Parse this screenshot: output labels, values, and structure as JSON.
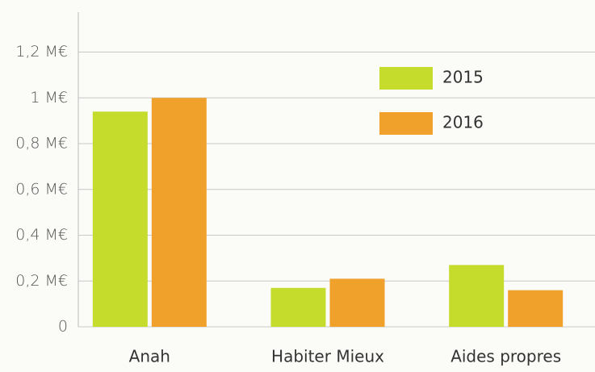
{
  "chart_data": {
    "type": "bar",
    "categories": [
      "Anah",
      "Habiter Mieux",
      "Aides propres"
    ],
    "series": [
      {
        "name": "2015",
        "color": "#c6dc2c",
        "values": [
          0.94,
          0.17,
          0.27
        ]
      },
      {
        "name": "2016",
        "color": "#f0a12c",
        "values": [
          1.0,
          0.21,
          0.16
        ]
      }
    ],
    "ylim": [
      0,
      1.35
    ],
    "yticks": [
      0,
      {
        "value": 0.2,
        "label": "0,2 M€"
      },
      {
        "value": 0.4,
        "label": "0,4 M€"
      },
      {
        "value": 0.6,
        "label": "0,6 M€"
      },
      {
        "value": 0.8,
        "label": "0,8 M€"
      },
      {
        "value": 1,
        "label": "1 M€"
      },
      {
        "value": 1.2,
        "label": "1,2 M€"
      }
    ],
    "grid": true,
    "legend": "top-right"
  }
}
